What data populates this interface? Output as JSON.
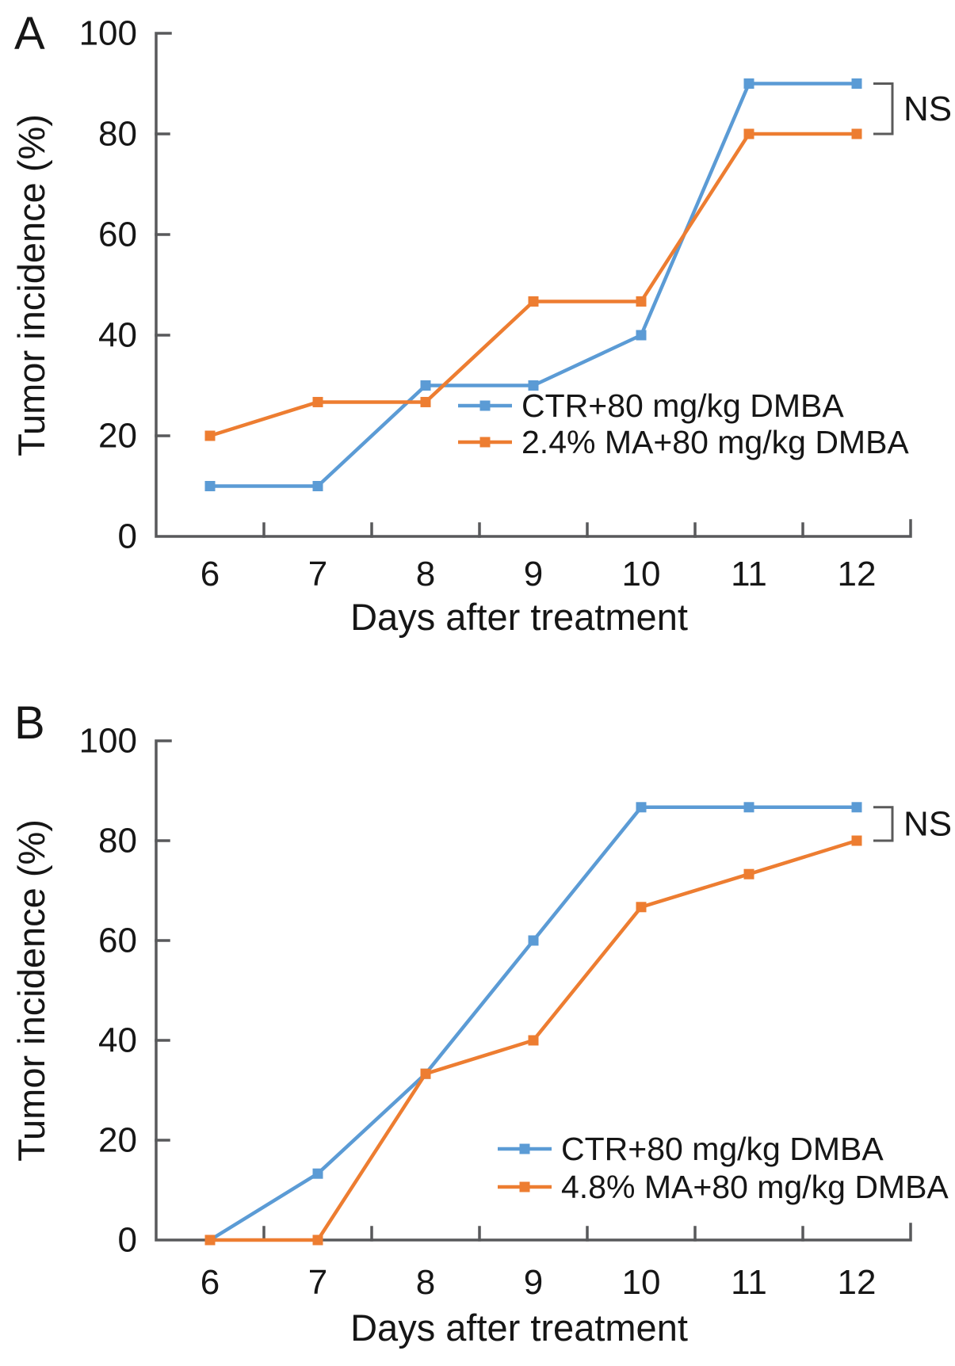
{
  "figure": {
    "background": "#ffffff",
    "axis_color": "#58595b",
    "text_color": "#161616"
  },
  "chart_data": [
    {
      "type": "line",
      "panel_label": "A",
      "title": "",
      "xlabel": "Days after treatment",
      "ylabel": "Tumor incidence (%)",
      "x": [
        6,
        7,
        8,
        9,
        10,
        11,
        12
      ],
      "xticklabels": [
        "6",
        "7",
        "8",
        "9",
        "10",
        "11",
        "12"
      ],
      "yticks": [
        0,
        20,
        40,
        60,
        80,
        100
      ],
      "ylim": [
        0,
        100
      ],
      "grid": false,
      "legend_position": "lower right inside",
      "annotation": "NS",
      "marker": "square",
      "series": [
        {
          "name": "CTR+80 mg/kg DMBA",
          "color": "#5B9BD5",
          "values": [
            10,
            10,
            30,
            30,
            40,
            90,
            90
          ]
        },
        {
          "name": "2.4% MA+80 mg/kg DMBA",
          "color": "#ED7D31",
          "values": [
            20,
            26.7,
            26.7,
            46.7,
            46.7,
            80,
            80
          ]
        }
      ]
    },
    {
      "type": "line",
      "panel_label": "B",
      "title": "",
      "xlabel": "Days after treatment",
      "ylabel": "Tumor incidence (%)",
      "x": [
        6,
        7,
        8,
        9,
        10,
        11,
        12
      ],
      "xticklabels": [
        "6",
        "7",
        "8",
        "9",
        "10",
        "11",
        "12"
      ],
      "yticks": [
        0,
        20,
        40,
        60,
        80,
        100
      ],
      "ylim": [
        0,
        100
      ],
      "grid": false,
      "legend_position": "lower right inside",
      "annotation": "NS",
      "marker": "square",
      "series": [
        {
          "name": "CTR+80 mg/kg DMBA",
          "color": "#5B9BD5",
          "values": [
            0,
            13.3,
            33.3,
            60,
            86.7,
            86.7,
            86.7
          ]
        },
        {
          "name": "4.8% MA+80 mg/kg DMBA",
          "color": "#ED7D31",
          "values": [
            0,
            0,
            33.3,
            40,
            66.7,
            73.3,
            80
          ]
        }
      ]
    }
  ]
}
